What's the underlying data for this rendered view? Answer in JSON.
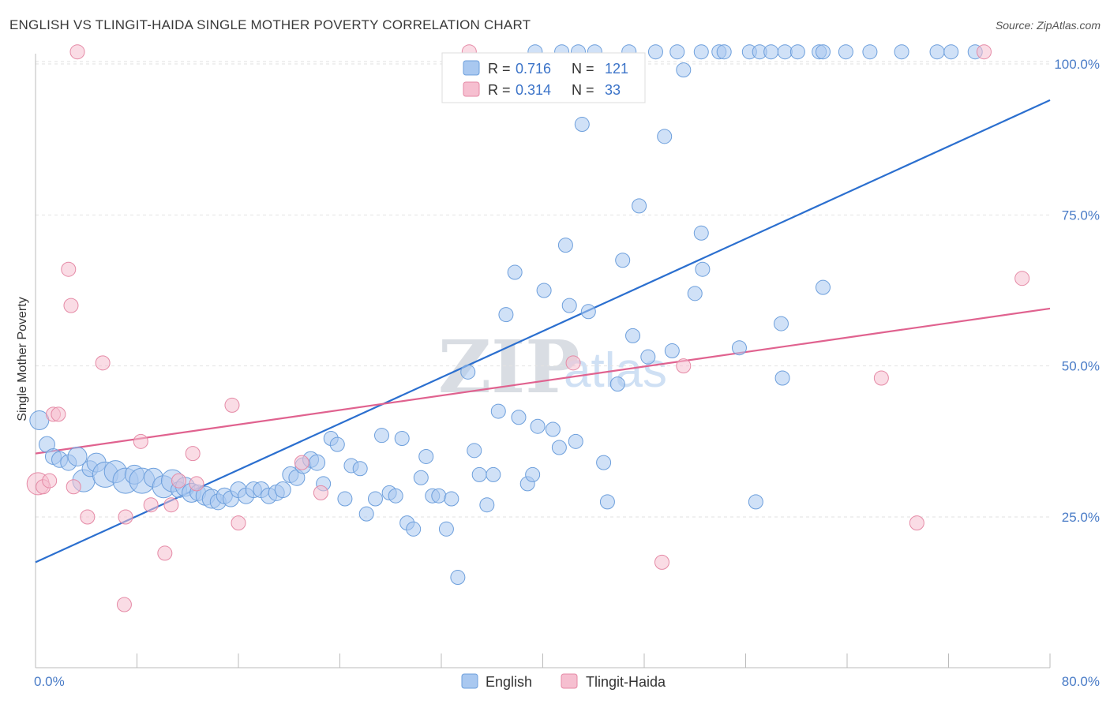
{
  "header": {
    "title": "ENGLISH VS TLINGIT-HAIDA SINGLE MOTHER POVERTY CORRELATION CHART",
    "source": "Source: ZipAtlas.com"
  },
  "watermark": {
    "zip": "ZIP",
    "atlas": "atlas"
  },
  "legend_top": {
    "rows": [
      {
        "r_label": "R =",
        "r_value": "0.716",
        "n_label": "N =",
        "n_value": "121",
        "color": "#a9c8f0",
        "stroke": "#6d9fdc"
      },
      {
        "r_label": "R =",
        "r_value": "0.314",
        "n_label": "N =",
        "n_value": "33",
        "color": "#f6bfd0",
        "stroke": "#e58aa6"
      }
    ]
  },
  "legend_bottom": {
    "items": [
      "English",
      "Tlingit-Haida"
    ]
  },
  "chart_data": {
    "type": "scatter",
    "title": "ENGLISH VS TLINGIT-HAIDA SINGLE MOTHER POVERTY CORRELATION CHART",
    "xlabel": "",
    "ylabel": "Single Mother Poverty",
    "xlim": [
      0,
      80
    ],
    "ylim": [
      0,
      105
    ],
    "x_tick_labels": [
      "0.0%",
      "80.0%"
    ],
    "y_tick_labels": [
      "25.0%",
      "50.0%",
      "75.0%",
      "100.0%"
    ],
    "y_ticks": [
      25,
      50,
      75,
      100
    ],
    "grid": true,
    "legend_position": "top-center",
    "series": [
      {
        "name": "English",
        "color": "#a9c8f0",
        "stroke": "#6d9fdc",
        "line_color": "#2b6fcf",
        "trend": [
          [
            0,
            17.5
          ],
          [
            80,
            94
          ]
        ],
        "points": [
          [
            0.3,
            41,
            12
          ],
          [
            0.9,
            37,
            10
          ],
          [
            1.4,
            35,
            10
          ],
          [
            1.9,
            34.5,
            10
          ],
          [
            2.6,
            34,
            10
          ],
          [
            3.3,
            35,
            12
          ],
          [
            3.8,
            31,
            14
          ],
          [
            4.3,
            33,
            10
          ],
          [
            4.8,
            34,
            12
          ],
          [
            5.5,
            32,
            16
          ],
          [
            6.3,
            32.5,
            14
          ],
          [
            7.1,
            31,
            16
          ],
          [
            7.8,
            32,
            12
          ],
          [
            8.4,
            31,
            16
          ],
          [
            9.3,
            31.5,
            12
          ],
          [
            10.1,
            30,
            14
          ],
          [
            10.8,
            31,
            14
          ],
          [
            11.3,
            29.5,
            10
          ],
          [
            11.8,
            30,
            12
          ],
          [
            12.3,
            29,
            12
          ],
          [
            12.8,
            29,
            10
          ],
          [
            13.4,
            28.5,
            12
          ],
          [
            13.9,
            28,
            12
          ],
          [
            14.4,
            27.5,
            10
          ],
          [
            14.9,
            28.5,
            10
          ],
          [
            15.4,
            28,
            10
          ],
          [
            16.0,
            29.5,
            10
          ],
          [
            16.6,
            28.5,
            10
          ],
          [
            17.2,
            29.5,
            10
          ],
          [
            17.8,
            29.5,
            10
          ],
          [
            18.4,
            28.5,
            10
          ],
          [
            19.0,
            29,
            10
          ],
          [
            19.5,
            29.5,
            10
          ],
          [
            20.1,
            32,
            10
          ],
          [
            20.6,
            31.5,
            10
          ],
          [
            21.1,
            33.5,
            10
          ],
          [
            21.7,
            34.5,
            10
          ],
          [
            22.2,
            34,
            10
          ],
          [
            22.7,
            30.5,
            9
          ],
          [
            23.3,
            38,
            9
          ],
          [
            23.8,
            37,
            9
          ],
          [
            24.4,
            28,
            9
          ],
          [
            24.9,
            33.5,
            9
          ],
          [
            25.6,
            33,
            9
          ],
          [
            26.1,
            25.5,
            9
          ],
          [
            26.8,
            28,
            9
          ],
          [
            27.3,
            38.5,
            9
          ],
          [
            27.9,
            29,
            9
          ],
          [
            28.4,
            28.5,
            9
          ],
          [
            28.9,
            38,
            9
          ],
          [
            29.3,
            24,
            9
          ],
          [
            29.8,
            23,
            9
          ],
          [
            30.4,
            31.5,
            9
          ],
          [
            30.8,
            35,
            9
          ],
          [
            31.3,
            28.5,
            9
          ],
          [
            31.8,
            28.5,
            9
          ],
          [
            32.4,
            23,
            9
          ],
          [
            32.8,
            28,
            9
          ],
          [
            33.3,
            15,
            9
          ],
          [
            34.1,
            49,
            9
          ],
          [
            34.6,
            36,
            9
          ],
          [
            35.0,
            32,
            9
          ],
          [
            35.6,
            27,
            9
          ],
          [
            36.1,
            32,
            9
          ],
          [
            36.5,
            42.5,
            9
          ],
          [
            37.1,
            58.5,
            9
          ],
          [
            37.8,
            65.5,
            9
          ],
          [
            38.1,
            41.5,
            9
          ],
          [
            38.8,
            30.5,
            9
          ],
          [
            39.2,
            32,
            9
          ],
          [
            39.6,
            40,
            9
          ],
          [
            40.1,
            62.5,
            9
          ],
          [
            40.8,
            39.5,
            9
          ],
          [
            41.3,
            36.5,
            9
          ],
          [
            41.8,
            70,
            9
          ],
          [
            42.1,
            60,
            9
          ],
          [
            42.6,
            37.5,
            9
          ],
          [
            43.1,
            90,
            9
          ],
          [
            43.6,
            59,
            9
          ],
          [
            44.8,
            34,
            9
          ],
          [
            45.1,
            27.5,
            9
          ],
          [
            45.5,
            95,
            9
          ],
          [
            45.9,
            47,
            9
          ],
          [
            46.3,
            67.5,
            9
          ],
          [
            47.1,
            55,
            9
          ],
          [
            47.6,
            76.5,
            9
          ],
          [
            48.3,
            51.5,
            9
          ],
          [
            49.6,
            88,
            9
          ],
          [
            50.2,
            52.5,
            9
          ],
          [
            51.1,
            99,
            9
          ],
          [
            52.0,
            62,
            9
          ],
          [
            52.5,
            72,
            9
          ],
          [
            52.6,
            66,
            9
          ],
          [
            55.5,
            53,
            9
          ],
          [
            56.8,
            27.5,
            9
          ],
          [
            58.8,
            57,
            9
          ],
          [
            58.9,
            48,
            9
          ],
          [
            62.1,
            63,
            9
          ],
          [
            44.1,
            102,
            9
          ],
          [
            46.8,
            102,
            9
          ],
          [
            48.9,
            102,
            9
          ],
          [
            50.6,
            102,
            9
          ],
          [
            52.5,
            102,
            9
          ],
          [
            53.9,
            102,
            9
          ],
          [
            54.3,
            102,
            9
          ],
          [
            56.3,
            102,
            9
          ],
          [
            57.1,
            102,
            9
          ],
          [
            58.0,
            102,
            9
          ],
          [
            59.1,
            102,
            9
          ],
          [
            60.1,
            102,
            9
          ],
          [
            61.8,
            102,
            9
          ],
          [
            62.1,
            102,
            9
          ],
          [
            63.9,
            102,
            9
          ],
          [
            65.8,
            102,
            9
          ],
          [
            68.3,
            102,
            9
          ],
          [
            71.1,
            102,
            9
          ],
          [
            72.2,
            102,
            9
          ],
          [
            74.1,
            102,
            9
          ],
          [
            41.5,
            102,
            9
          ],
          [
            42.8,
            102,
            9
          ],
          [
            39.4,
            102,
            9
          ]
        ]
      },
      {
        "name": "Tlingit-Haida",
        "color": "#f6bfd0",
        "stroke": "#e58aa6",
        "line_color": "#e0628f",
        "trend": [
          [
            0,
            35.5
          ],
          [
            80,
            59.5
          ]
        ],
        "points": [
          [
            0.2,
            30.5,
            14
          ],
          [
            0.6,
            30,
            9
          ],
          [
            1.1,
            31,
            9
          ],
          [
            1.4,
            42,
            9
          ],
          [
            1.8,
            42,
            9
          ],
          [
            2.6,
            66,
            9
          ],
          [
            2.8,
            60,
            9
          ],
          [
            3.0,
            30,
            9
          ],
          [
            3.3,
            102,
            9
          ],
          [
            4.1,
            25,
            9
          ],
          [
            5.3,
            50.5,
            9
          ],
          [
            7.0,
            10.5,
            9
          ],
          [
            7.1,
            25,
            9
          ],
          [
            8.3,
            37.5,
            9
          ],
          [
            9.1,
            27,
            9
          ],
          [
            10.2,
            19,
            9
          ],
          [
            10.7,
            27,
            9
          ],
          [
            11.3,
            31,
            9
          ],
          [
            12.4,
            35.5,
            9
          ],
          [
            12.7,
            30.5,
            9
          ],
          [
            15.5,
            43.5,
            9
          ],
          [
            16.0,
            24,
            9
          ],
          [
            21.0,
            34,
            9
          ],
          [
            22.5,
            29,
            9
          ],
          [
            34.2,
            102,
            9
          ],
          [
            42.4,
            50.5,
            9
          ],
          [
            49.4,
            17.5,
            9
          ],
          [
            51.1,
            50,
            9
          ],
          [
            66.7,
            48,
            9
          ],
          [
            69.5,
            24,
            9
          ],
          [
            74.8,
            102,
            9
          ],
          [
            77.8,
            64.5,
            9
          ],
          [
            78.8,
            64.5,
            0
          ]
        ]
      }
    ]
  }
}
